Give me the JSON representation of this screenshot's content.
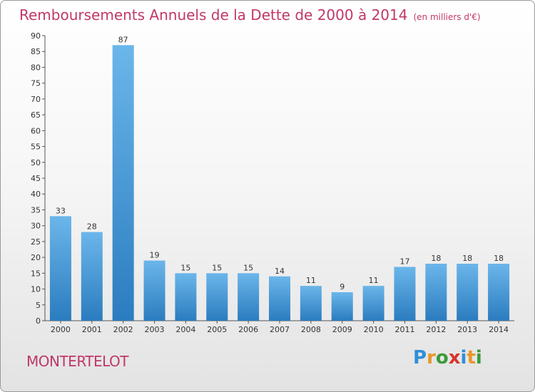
{
  "title": "Remboursements Annuels de la Dette de 2000 à 2014",
  "unit_note": "(en milliers d'€)",
  "commune": "MONTERTELOT",
  "logo": {
    "letters": [
      "P",
      "r",
      "o",
      "x",
      "i",
      "t",
      "i"
    ],
    "colors": [
      "#2f8fd6",
      "#e8962a",
      "#3a9a3a",
      "#d8342c",
      "#2f8fd6",
      "#e8962a",
      "#3a9a3a"
    ]
  },
  "colors": {
    "accent": "#c0386a",
    "bar_top": "#6bb6ea",
    "bar_bottom": "#2b7cbf"
  },
  "chart_data": {
    "type": "bar",
    "categories": [
      "2000",
      "2001",
      "2002",
      "2003",
      "2004",
      "2005",
      "2006",
      "2007",
      "2008",
      "2009",
      "2010",
      "2011",
      "2012",
      "2013",
      "2014"
    ],
    "values": [
      33,
      28,
      87,
      19,
      15,
      15,
      15,
      14,
      11,
      9,
      11,
      17,
      18,
      18,
      18
    ],
    "title": "Remboursements Annuels de la Dette de 2000 à 2014",
    "xlabel": "",
    "ylabel": "",
    "ylim": [
      0,
      90
    ],
    "yticks": [
      0,
      5,
      10,
      15,
      20,
      25,
      30,
      35,
      40,
      45,
      50,
      55,
      60,
      65,
      70,
      75,
      80,
      85,
      90
    ],
    "grid": false,
    "legend": "none"
  }
}
